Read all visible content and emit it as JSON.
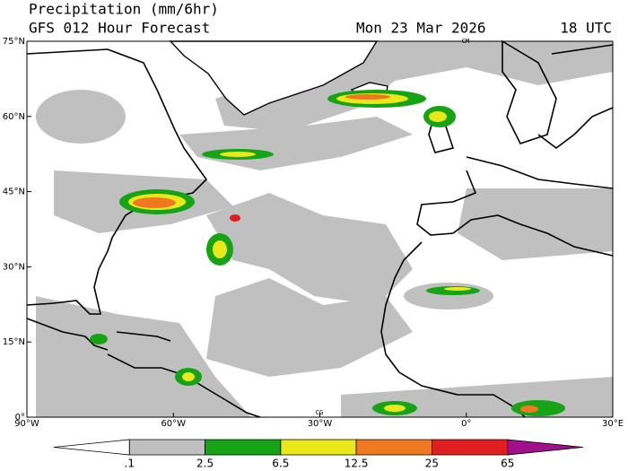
{
  "header": {
    "title": "Precipitation (mm/6hr)",
    "subtitle": "GFS 012 Hour Forecast",
    "date": "Mon 23 Mar 2026",
    "time": "18 UTC"
  },
  "map": {
    "lat_labels": [
      "75°N",
      "60°N",
      "45°N",
      "30°N",
      "15°N",
      "0°"
    ],
    "lon_labels": [
      "90°W",
      "60°W",
      "30°W",
      "0°",
      "30°E"
    ],
    "markers": [
      "CM",
      "CG"
    ]
  },
  "legend": {
    "labels": [
      ".1",
      "2.5",
      "6.5",
      "12.5",
      "25",
      "65"
    ],
    "colors": [
      "#ffffff",
      "#c0c0c0",
      "#16a316",
      "#e8e81a",
      "#f07820",
      "#e02020",
      "#a0108c"
    ]
  }
}
